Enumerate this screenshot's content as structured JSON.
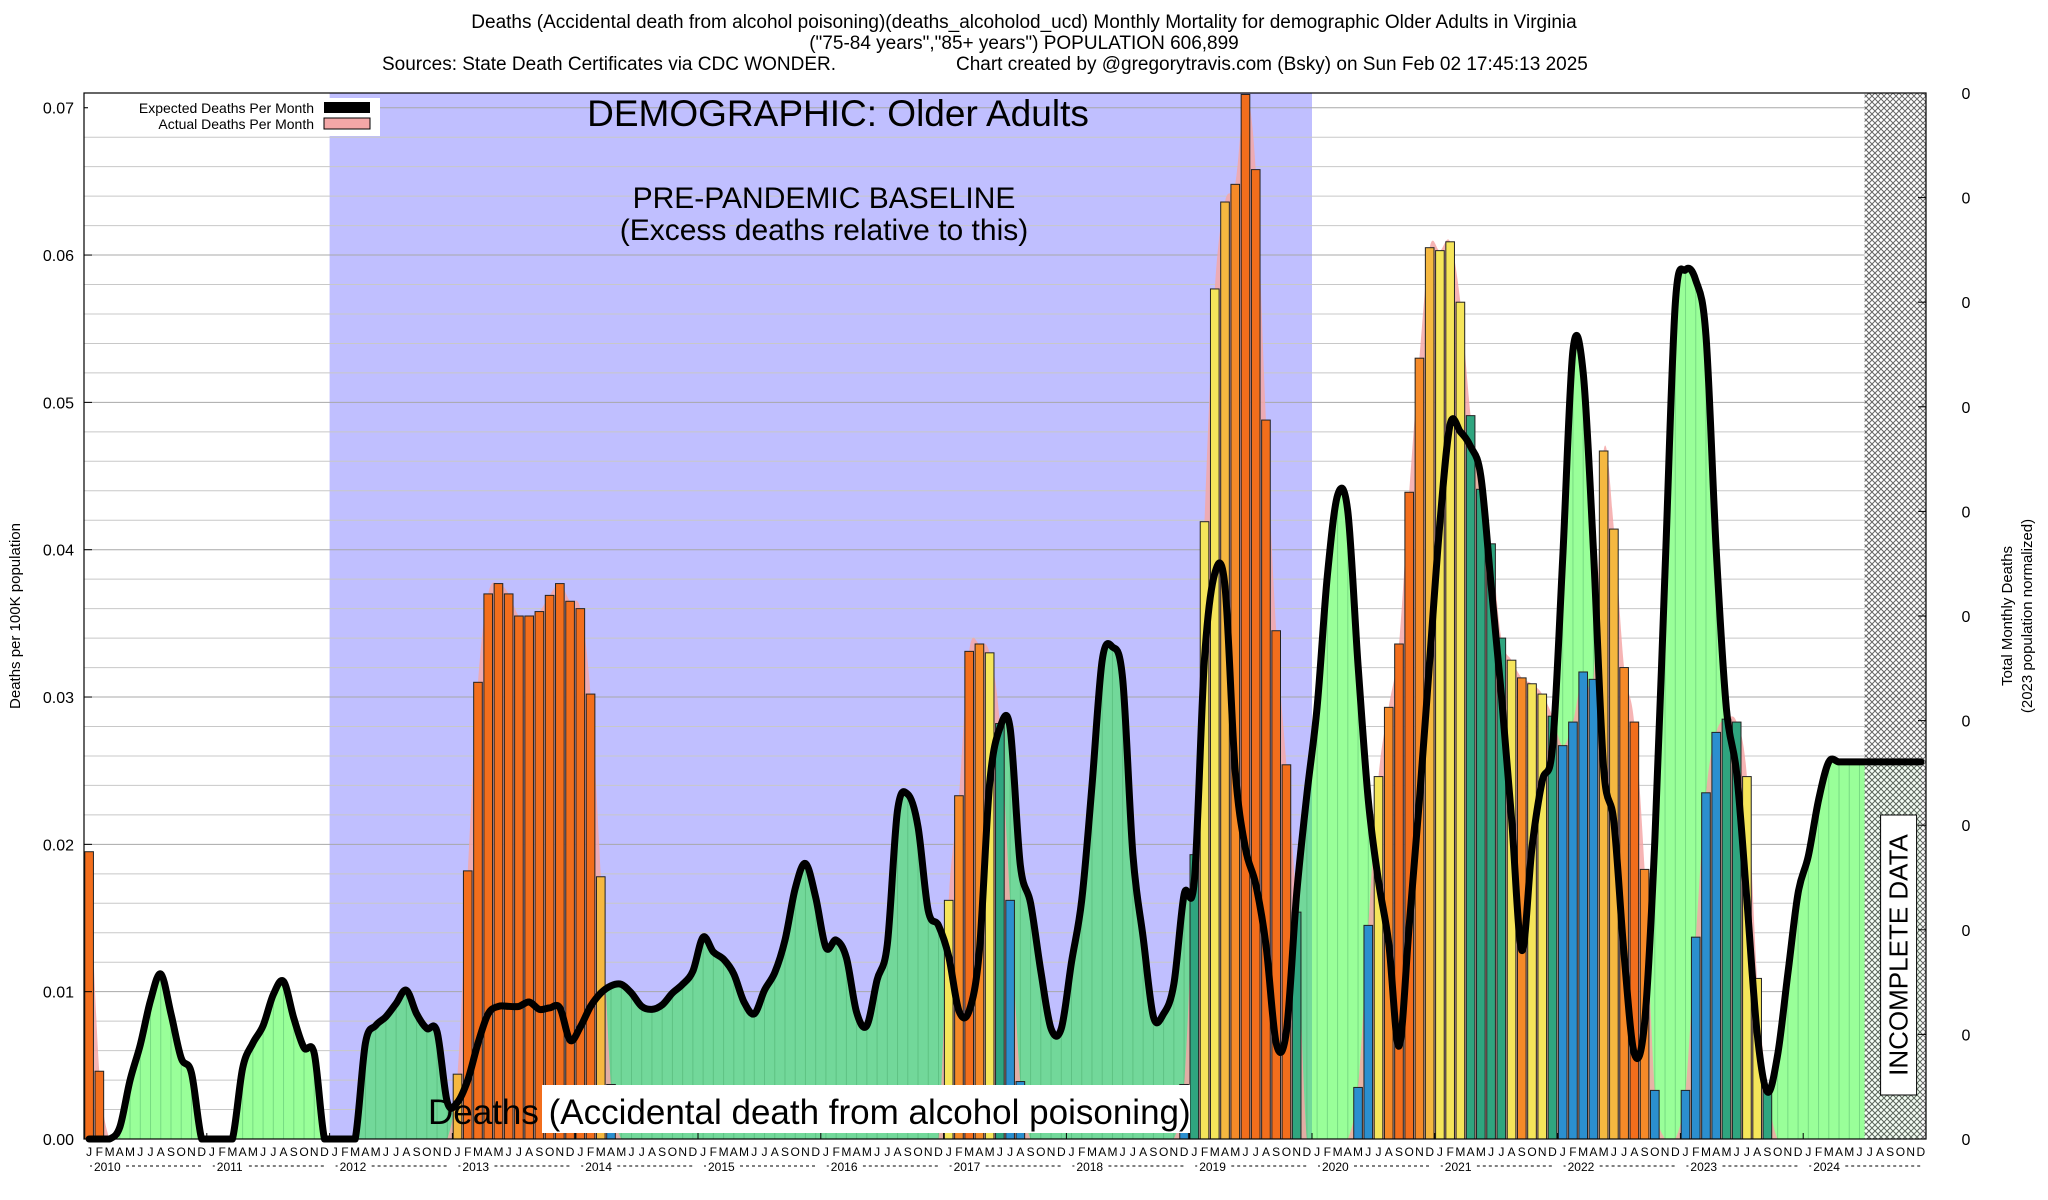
{
  "header": {
    "title": "Deaths (Accidental death from alcohol poisoning)(deaths_alcoholod_ucd) Monthly Mortality for demographic Older Adults in Virginia",
    "demographic_line": "(\"75-84 years\",\"85+ years\") POPULATION 606,899",
    "sources": "Sources: State Death Certificates via CDC WONDER.",
    "credit": "Chart created by @gregorytravis.com (Bsky) on Sun Feb 02 17:45:13 2025"
  },
  "colors": {
    "baseline_region": "#c0bfff",
    "expected_fill": "#99ff99",
    "expected_fill_in_baseline": "#72d89a",
    "expected_line": "#000000",
    "actual_fill": "#f4a7a7",
    "bar_palette": [
      "#2b8fcf",
      "#2fa57f",
      "#f5e55a",
      "#f5b840",
      "#f58a28",
      "#f26e1c"
    ],
    "gridline": "#c8c8c8"
  },
  "chart_data": {
    "type": "bar",
    "title": "DEMOGRAPHIC: Older Adults",
    "ylabel": "Deaths per 100K population",
    "y2label_line1": "Total Monthly Deaths",
    "y2label_line2": "(2023 population normalized)",
    "ylim": [
      0,
      0.071
    ],
    "yticks": [
      "0.00",
      "0.01",
      "0.02",
      "0.03",
      "0.04",
      "0.05",
      "0.06",
      "0.07"
    ],
    "y2ticks": [
      "0",
      "0",
      "0",
      "0",
      "0",
      "0",
      "0",
      "0",
      "0",
      "0",
      "0"
    ],
    "grid": true,
    "legend_position": "top-left",
    "legend": [
      "Expected Deaths Per Month",
      "Actual Deaths Per Month"
    ],
    "month_letters": [
      "J",
      "F",
      "M",
      "A",
      "M",
      "J",
      "J",
      "A",
      "S",
      "O",
      "N",
      "D"
    ],
    "years": [
      "2010",
      "2011",
      "2012",
      "2013",
      "2014",
      "2015",
      "2016",
      "2017",
      "2018",
      "2019",
      "2020",
      "2021",
      "2022",
      "2023",
      "2024"
    ],
    "baseline_region": {
      "start_month_index": 24,
      "end_month_index": 120
    },
    "incomplete_region": {
      "start_month_index": 174,
      "end_month_index": 180
    },
    "annotations": {
      "baseline_title": "PRE-PANDEMIC BASELINE",
      "baseline_subtitle": "(Excess deaths relative to this)",
      "incomplete": "INCOMPLETE DATA",
      "cause": "Deaths (Accidental death from alcohol poisoning)"
    },
    "series": [
      {
        "name": "Actual Deaths Per Month",
        "values": [
          0.0195,
          0.0046,
          0,
          0,
          0,
          0,
          0,
          0,
          0,
          0,
          0,
          0,
          0,
          0,
          0,
          0,
          0,
          0,
          0,
          0,
          0,
          0,
          0,
          0,
          0,
          0,
          0,
          0,
          0,
          0,
          0,
          0,
          0,
          0,
          0,
          0,
          0.0044,
          0.0182,
          0.031,
          0.037,
          0.0377,
          0.037,
          0.0355,
          0.0355,
          0.0358,
          0.0369,
          0.0377,
          0.0365,
          0.036,
          0.0302,
          0.0178,
          0.0037,
          0,
          0,
          0,
          0,
          0,
          0,
          0,
          0,
          0,
          0,
          0,
          0,
          0,
          0,
          0,
          0,
          0,
          0,
          0,
          0,
          0,
          0,
          0,
          0,
          0,
          0,
          0,
          0,
          0,
          0,
          0,
          0,
          0.0162,
          0.0233,
          0.0331,
          0.0336,
          0.033,
          0.0282,
          0.0162,
          0.0039,
          0,
          0,
          0,
          0,
          0,
          0,
          0,
          0,
          0,
          0,
          0,
          0,
          0,
          0,
          0,
          0.0037,
          0.0193,
          0.0419,
          0.0577,
          0.0636,
          0.0648,
          0.0709,
          0.0658,
          0.0488,
          0.0345,
          0.0254,
          0.0154,
          0,
          0,
          0,
          0,
          0,
          0.0035,
          0.0145,
          0.0246,
          0.0293,
          0.0336,
          0.0439,
          0.053,
          0.0605,
          0.0603,
          0.0609,
          0.0568,
          0.0491,
          0.0441,
          0.0404,
          0.034,
          0.0325,
          0.0313,
          0.0309,
          0.0302,
          0.0287,
          0.0267,
          0.0283,
          0.0317,
          0.0312,
          0.0467,
          0.0414,
          0.032,
          0.0283,
          0.0183,
          0.0033,
          0,
          0,
          0.0033,
          0.0137,
          0.0235,
          0.0276,
          0.0285,
          0.0283,
          0.0246,
          0.0109,
          0.0033,
          0,
          0,
          0,
          0,
          0,
          0,
          0,
          0,
          0,
          0,
          0,
          0,
          0,
          0,
          0
        ]
      },
      {
        "name": "Expected Deaths Per Month",
        "values": [
          0,
          0,
          0,
          0.0008,
          0.004,
          0.0064,
          0.0094,
          0.0112,
          0.0085,
          0.0055,
          0.0045,
          0,
          0,
          0,
          0,
          0.0048,
          0.0065,
          0.0077,
          0.0098,
          0.0107,
          0.0082,
          0.0062,
          0.0058,
          0,
          0,
          0,
          0,
          0.0065,
          0.0077,
          0.0083,
          0.0092,
          0.0101,
          0.0085,
          0.0075,
          0.0073,
          0.0025,
          0.0025,
          0.004,
          0.0065,
          0.0085,
          0.009,
          0.009,
          0.009,
          0.0093,
          0.0088,
          0.0089,
          0.0089,
          0.0067,
          0.0076,
          0.009,
          0.0099,
          0.0104,
          0.0105,
          0.0099,
          0.009,
          0.0088,
          0.0091,
          0.0099,
          0.0105,
          0.0114,
          0.0137,
          0.0127,
          0.0122,
          0.0112,
          0.0093,
          0.0085,
          0.0101,
          0.0113,
          0.0135,
          0.017,
          0.0187,
          0.0164,
          0.013,
          0.0135,
          0.0123,
          0.0086,
          0.0077,
          0.0108,
          0.0132,
          0.0223,
          0.0234,
          0.0212,
          0.0155,
          0.0145,
          0.0124,
          0.0087,
          0.0087,
          0.0128,
          0.0241,
          0.0279,
          0.0279,
          0.0186,
          0.016,
          0.0114,
          0.0075,
          0.0075,
          0.012,
          0.0162,
          0.024,
          0.0325,
          0.0334,
          0.0312,
          0.0193,
          0.0137,
          0.0083,
          0.0085,
          0.0105,
          0.0166,
          0.0175,
          0.0326,
          0.0384,
          0.0375,
          0.025,
          0.0197,
          0.0173,
          0.0132,
          0.0065,
          0.0073,
          0.0166,
          0.0234,
          0.0293,
          0.0382,
          0.0437,
          0.0426,
          0.0322,
          0.023,
          0.0175,
          0.0133,
          0.0063,
          0.0145,
          0.023,
          0.0325,
          0.0418,
          0.0485,
          0.048,
          0.047,
          0.045,
          0.0376,
          0.0302,
          0.0218,
          0.0128,
          0.0198,
          0.0243,
          0.0266,
          0.0394,
          0.0535,
          0.052,
          0.04,
          0.0252,
          0.0215,
          0.0125,
          0.0058,
          0.0079,
          0.0202,
          0.0385,
          0.0567,
          0.059,
          0.0583,
          0.0545,
          0.04,
          0.0292,
          0.0248,
          0.0162,
          0.0072,
          0.0032,
          0.0057,
          0.0112,
          0.0167,
          0.0192,
          0.023,
          0.0256,
          0.0256,
          0.0256,
          0.0256,
          0.0256,
          0.0256,
          0.0256,
          0.0256,
          0.0256,
          0.0256
        ]
      }
    ]
  }
}
